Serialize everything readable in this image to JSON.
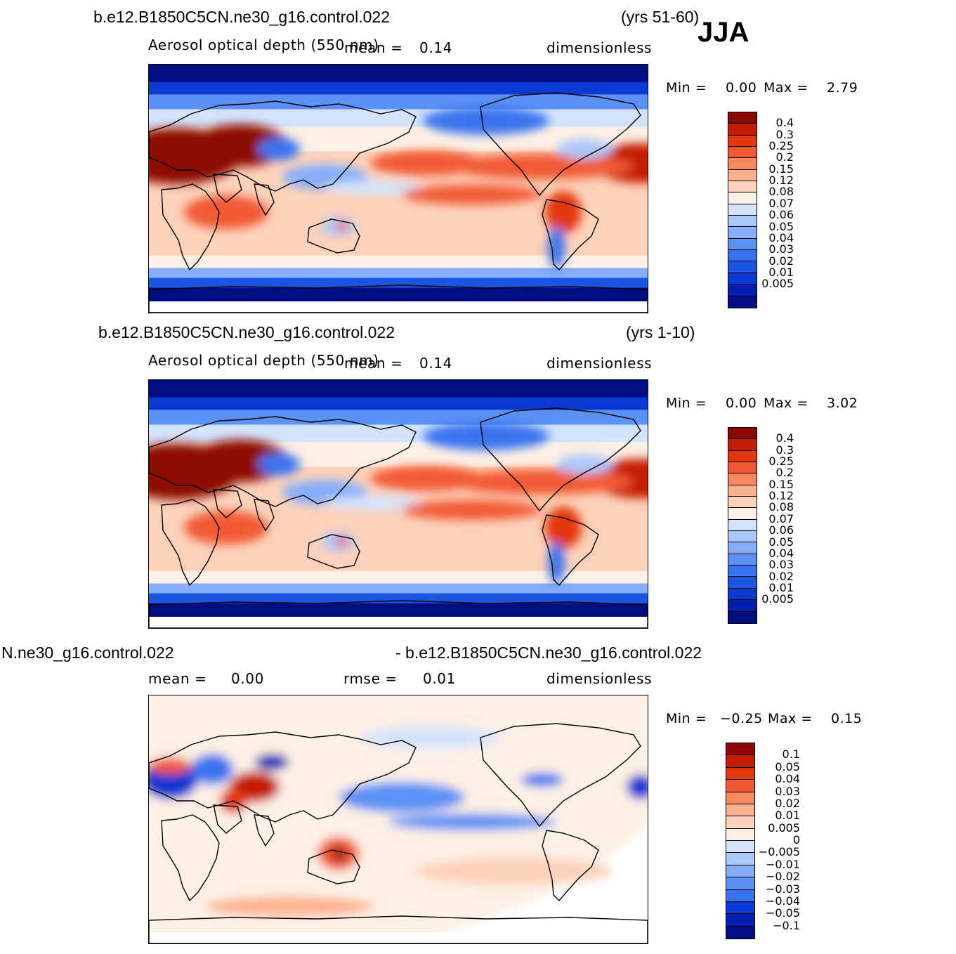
{
  "season": "JJA",
  "colors": {
    "seq": [
      "#000e82",
      "#0020b2",
      "#0b39d2",
      "#1d55e3",
      "#3a73ef",
      "#5c91f5",
      "#85adf9",
      "#abc8fb",
      "#d3e3fc",
      "#fdf0e5",
      "#fdd2ba",
      "#fcb18d",
      "#f8885f",
      "#f15a34",
      "#e2380e",
      "#c41e06",
      "#8d0703"
    ],
    "div": [
      "#000e82",
      "#0020b2",
      "#0b39d2",
      "#3a73ef",
      "#5c91f5",
      "#85adf9",
      "#abc8fb",
      "#d3e3fc",
      "#fdf0e5",
      "#fdd2ba",
      "#fcb18d",
      "#f8885f",
      "#f15a34",
      "#e2380e",
      "#c41e06",
      "#8d0703"
    ],
    "coast": "#000000"
  },
  "panels": [
    {
      "title_left": "b.e12.B1850C5CN.ne30_g16.control.022",
      "title_right": "(yrs 51-60)",
      "variable": "Aerosol optical depth (550 nm)",
      "mean_label": "mean =",
      "mean_value": "0.14",
      "units": "dimensionless",
      "min_label": "Min =",
      "min_value": "0.00",
      "max_label": "Max =",
      "max_value": "2.79",
      "colorbar_labels": [
        "0.4",
        "0.3",
        "0.25",
        "0.2",
        "0.15",
        "0.12",
        "0.08",
        "0.07",
        "0.06",
        "0.05",
        "0.04",
        "0.03",
        "0.02",
        "0.01",
        "0.005"
      ]
    },
    {
      "title_left": "b.e12.B1850C5CN.ne30_g16.control.022",
      "title_right": "(yrs 1-10)",
      "variable": "Aerosol optical depth (550 nm)",
      "mean_label": "mean =",
      "mean_value": "0.14",
      "units": "dimensionless",
      "min_label": "Min =",
      "min_value": "0.00",
      "max_label": "Max =",
      "max_value": "3.02",
      "colorbar_labels": [
        "0.4",
        "0.3",
        "0.25",
        "0.2",
        "0.15",
        "0.12",
        "0.08",
        "0.07",
        "0.06",
        "0.05",
        "0.04",
        "0.03",
        "0.02",
        "0.01",
        "0.005"
      ]
    },
    {
      "title_left": "N.ne30_g16.control.022",
      "title_right": "- b.e12.B1850C5CN.ne30_g16.control.022",
      "mean_label": "mean =",
      "mean_value": "0.00",
      "rmse_label": "rmse =",
      "rmse_value": "0.01",
      "units": "dimensionless",
      "min_label": "Min =",
      "min_value": "−0.25",
      "max_label": "Max =",
      "max_value": "0.15",
      "colorbar_labels": [
        "0.1",
        "0.05",
        "0.04",
        "0.03",
        "0.02",
        "0.01",
        "0.005",
        "0",
        "−0.005",
        "−0.01",
        "−0.02",
        "−0.03",
        "−0.04",
        "−0.05",
        "−0.1"
      ]
    }
  ],
  "chart_data": [
    {
      "type": "heatmap",
      "title": "b.e12.B1850C5CN.ne30_g16.control.022 (yrs 51-60)",
      "variable": "Aerosol optical depth (550 nm)",
      "units": "dimensionless",
      "season": "JJA",
      "mean": 0.14,
      "min": 0.0,
      "max": 2.79,
      "levels": [
        0.005,
        0.01,
        0.02,
        0.03,
        0.04,
        0.05,
        0.06,
        0.07,
        0.08,
        0.12,
        0.15,
        0.2,
        0.25,
        0.3,
        0.4
      ],
      "x_range": [
        0,
        360
      ],
      "y_range": [
        -90,
        90
      ]
    },
    {
      "type": "heatmap",
      "title": "b.e12.B1850C5CN.ne30_g16.control.022 (yrs 1-10)",
      "variable": "Aerosol optical depth (550 nm)",
      "units": "dimensionless",
      "mean": 0.14,
      "min": 0.0,
      "max": 3.02,
      "levels": [
        0.005,
        0.01,
        0.02,
        0.03,
        0.04,
        0.05,
        0.06,
        0.07,
        0.08,
        0.12,
        0.15,
        0.2,
        0.25,
        0.3,
        0.4
      ],
      "x_range": [
        0,
        360
      ],
      "y_range": [
        -90,
        90
      ]
    },
    {
      "type": "heatmap",
      "title": "N.ne30_g16.control.022 - b.e12.B1850C5CN.ne30_g16.control.022",
      "units": "dimensionless",
      "mean": 0.0,
      "rmse": 0.01,
      "min": -0.25,
      "max": 0.15,
      "levels": [
        -0.1,
        -0.05,
        -0.04,
        -0.03,
        -0.02,
        -0.01,
        -0.005,
        0,
        0.005,
        0.01,
        0.02,
        0.03,
        0.04,
        0.05,
        0.1
      ],
      "x_range": [
        0,
        360
      ],
      "y_range": [
        -90,
        90
      ]
    }
  ]
}
